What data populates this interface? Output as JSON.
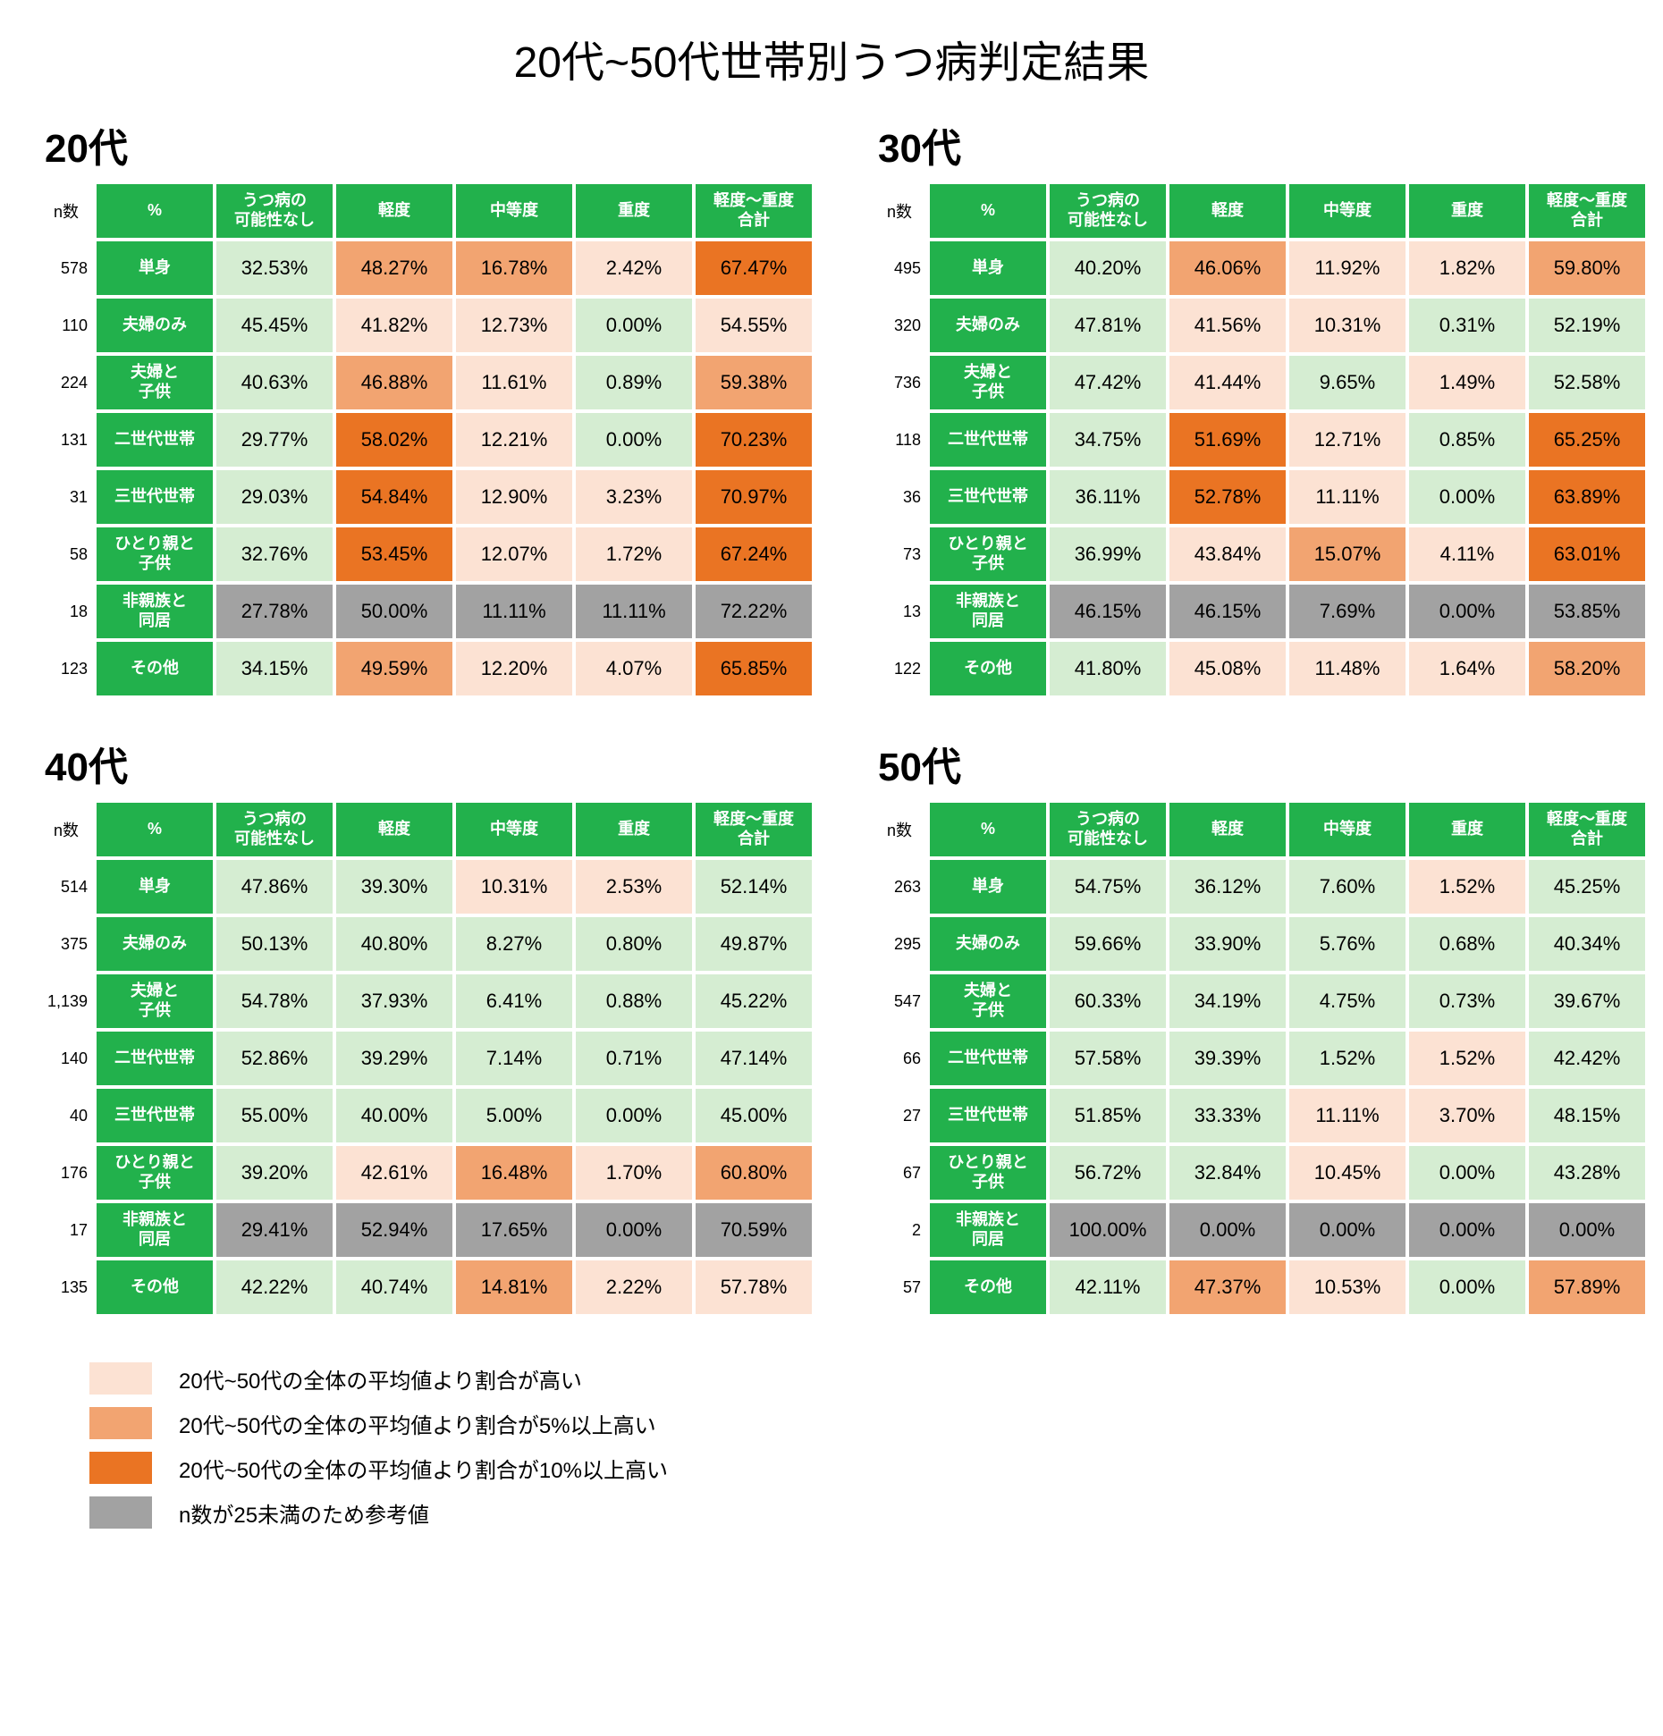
{
  "title": "20代~50代世帯別うつ病判定結果",
  "columns": {
    "n": "n数",
    "pct": "%",
    "none": "うつ病の\n可能性なし",
    "mild": "軽度",
    "moderate": "中等度",
    "severe": "重度",
    "total": "軽度～重度\n合計"
  },
  "row_labels": {
    "single": "単身",
    "couple": "夫婦のみ",
    "couple_child": "夫婦と\n子供",
    "two_gen": "二世代世帯",
    "three_gen": "三世代世帯",
    "single_parent": "ひとり親と\n子供",
    "nonrel": "非親族と\n同居",
    "other": "その他"
  },
  "colors": {
    "green_header": "#22b14c",
    "light_green": "#d5edd2",
    "high1": "#fce2d3",
    "high2": "#f2a471",
    "high3": "#ea7423",
    "ref_gray": "#a2a2a2",
    "text": "#000000",
    "header_text": "#ffffff"
  },
  "legend": [
    {
      "color": "high1",
      "text": "20代~50代の全体の平均値より割合が高い"
    },
    {
      "color": "high2",
      "text": "20代~50代の全体の平均値より割合が5%以上高い"
    },
    {
      "color": "high3",
      "text": "20代~50代の全体の平均値より割合が10%以上高い"
    },
    {
      "color": "ref_gray",
      "text": "n数が25未満のため参考値"
    }
  ],
  "tables": [
    {
      "heading": "20代",
      "rows": [
        {
          "n": "578",
          "key": "single",
          "v": [
            [
              "32.53%",
              "none"
            ],
            [
              "48.27%",
              "h2"
            ],
            [
              "16.78%",
              "h2"
            ],
            [
              "2.42%",
              "h1"
            ],
            [
              "67.47%",
              "h3"
            ]
          ]
        },
        {
          "n": "110",
          "key": "couple",
          "v": [
            [
              "45.45%",
              "none"
            ],
            [
              "41.82%",
              "h1"
            ],
            [
              "12.73%",
              "h1"
            ],
            [
              "0.00%",
              "none"
            ],
            [
              "54.55%",
              "h1"
            ]
          ]
        },
        {
          "n": "224",
          "key": "couple_child",
          "v": [
            [
              "40.63%",
              "none"
            ],
            [
              "46.88%",
              "h2"
            ],
            [
              "11.61%",
              "h1"
            ],
            [
              "0.89%",
              "none"
            ],
            [
              "59.38%",
              "h2"
            ]
          ]
        },
        {
          "n": "131",
          "key": "two_gen",
          "v": [
            [
              "29.77%",
              "none"
            ],
            [
              "58.02%",
              "h3"
            ],
            [
              "12.21%",
              "h1"
            ],
            [
              "0.00%",
              "none"
            ],
            [
              "70.23%",
              "h3"
            ]
          ]
        },
        {
          "n": "31",
          "key": "three_gen",
          "v": [
            [
              "29.03%",
              "none"
            ],
            [
              "54.84%",
              "h3"
            ],
            [
              "12.90%",
              "h1"
            ],
            [
              "3.23%",
              "h1"
            ],
            [
              "70.97%",
              "h3"
            ]
          ]
        },
        {
          "n": "58",
          "key": "single_parent",
          "v": [
            [
              "32.76%",
              "none"
            ],
            [
              "53.45%",
              "h3"
            ],
            [
              "12.07%",
              "h1"
            ],
            [
              "1.72%",
              "h1"
            ],
            [
              "67.24%",
              "h3"
            ]
          ]
        },
        {
          "n": "18",
          "key": "nonrel",
          "v": [
            [
              "27.78%",
              "ref"
            ],
            [
              "50.00%",
              "ref"
            ],
            [
              "11.11%",
              "ref"
            ],
            [
              "11.11%",
              "ref"
            ],
            [
              "72.22%",
              "ref"
            ]
          ]
        },
        {
          "n": "123",
          "key": "other",
          "v": [
            [
              "34.15%",
              "none"
            ],
            [
              "49.59%",
              "h2"
            ],
            [
              "12.20%",
              "h1"
            ],
            [
              "4.07%",
              "h1"
            ],
            [
              "65.85%",
              "h3"
            ]
          ]
        }
      ]
    },
    {
      "heading": "30代",
      "rows": [
        {
          "n": "495",
          "key": "single",
          "v": [
            [
              "40.20%",
              "none"
            ],
            [
              "46.06%",
              "h2"
            ],
            [
              "11.92%",
              "h1"
            ],
            [
              "1.82%",
              "h1"
            ],
            [
              "59.80%",
              "h2"
            ]
          ]
        },
        {
          "n": "320",
          "key": "couple",
          "v": [
            [
              "47.81%",
              "none"
            ],
            [
              "41.56%",
              "h1"
            ],
            [
              "10.31%",
              "h1"
            ],
            [
              "0.31%",
              "none"
            ],
            [
              "52.19%",
              "none"
            ]
          ]
        },
        {
          "n": "736",
          "key": "couple_child",
          "v": [
            [
              "47.42%",
              "none"
            ],
            [
              "41.44%",
              "h1"
            ],
            [
              "9.65%",
              "none"
            ],
            [
              "1.49%",
              "h1"
            ],
            [
              "52.58%",
              "none"
            ]
          ]
        },
        {
          "n": "118",
          "key": "two_gen",
          "v": [
            [
              "34.75%",
              "none"
            ],
            [
              "51.69%",
              "h3"
            ],
            [
              "12.71%",
              "h1"
            ],
            [
              "0.85%",
              "none"
            ],
            [
              "65.25%",
              "h3"
            ]
          ]
        },
        {
          "n": "36",
          "key": "three_gen",
          "v": [
            [
              "36.11%",
              "none"
            ],
            [
              "52.78%",
              "h3"
            ],
            [
              "11.11%",
              "h1"
            ],
            [
              "0.00%",
              "none"
            ],
            [
              "63.89%",
              "h3"
            ]
          ]
        },
        {
          "n": "73",
          "key": "single_parent",
          "v": [
            [
              "36.99%",
              "none"
            ],
            [
              "43.84%",
              "h1"
            ],
            [
              "15.07%",
              "h2"
            ],
            [
              "4.11%",
              "h1"
            ],
            [
              "63.01%",
              "h3"
            ]
          ]
        },
        {
          "n": "13",
          "key": "nonrel",
          "v": [
            [
              "46.15%",
              "ref"
            ],
            [
              "46.15%",
              "ref"
            ],
            [
              "7.69%",
              "ref"
            ],
            [
              "0.00%",
              "ref"
            ],
            [
              "53.85%",
              "ref"
            ]
          ]
        },
        {
          "n": "122",
          "key": "other",
          "v": [
            [
              "41.80%",
              "none"
            ],
            [
              "45.08%",
              "h1"
            ],
            [
              "11.48%",
              "h1"
            ],
            [
              "1.64%",
              "h1"
            ],
            [
              "58.20%",
              "h2"
            ]
          ]
        }
      ]
    },
    {
      "heading": "40代",
      "rows": [
        {
          "n": "514",
          "key": "single",
          "v": [
            [
              "47.86%",
              "none"
            ],
            [
              "39.30%",
              "none"
            ],
            [
              "10.31%",
              "h1"
            ],
            [
              "2.53%",
              "h1"
            ],
            [
              "52.14%",
              "none"
            ]
          ]
        },
        {
          "n": "375",
          "key": "couple",
          "v": [
            [
              "50.13%",
              "none"
            ],
            [
              "40.80%",
              "none"
            ],
            [
              "8.27%",
              "none"
            ],
            [
              "0.80%",
              "none"
            ],
            [
              "49.87%",
              "none"
            ]
          ]
        },
        {
          "n": "1,139",
          "key": "couple_child",
          "v": [
            [
              "54.78%",
              "none"
            ],
            [
              "37.93%",
              "none"
            ],
            [
              "6.41%",
              "none"
            ],
            [
              "0.88%",
              "none"
            ],
            [
              "45.22%",
              "none"
            ]
          ]
        },
        {
          "n": "140",
          "key": "two_gen",
          "v": [
            [
              "52.86%",
              "none"
            ],
            [
              "39.29%",
              "none"
            ],
            [
              "7.14%",
              "none"
            ],
            [
              "0.71%",
              "none"
            ],
            [
              "47.14%",
              "none"
            ]
          ]
        },
        {
          "n": "40",
          "key": "three_gen",
          "v": [
            [
              "55.00%",
              "none"
            ],
            [
              "40.00%",
              "none"
            ],
            [
              "5.00%",
              "none"
            ],
            [
              "0.00%",
              "none"
            ],
            [
              "45.00%",
              "none"
            ]
          ]
        },
        {
          "n": "176",
          "key": "single_parent",
          "v": [
            [
              "39.20%",
              "none"
            ],
            [
              "42.61%",
              "h1"
            ],
            [
              "16.48%",
              "h2"
            ],
            [
              "1.70%",
              "h1"
            ],
            [
              "60.80%",
              "h2"
            ]
          ]
        },
        {
          "n": "17",
          "key": "nonrel",
          "v": [
            [
              "29.41%",
              "ref"
            ],
            [
              "52.94%",
              "ref"
            ],
            [
              "17.65%",
              "ref"
            ],
            [
              "0.00%",
              "ref"
            ],
            [
              "70.59%",
              "ref"
            ]
          ]
        },
        {
          "n": "135",
          "key": "other",
          "v": [
            [
              "42.22%",
              "none"
            ],
            [
              "40.74%",
              "none"
            ],
            [
              "14.81%",
              "h2"
            ],
            [
              "2.22%",
              "h1"
            ],
            [
              "57.78%",
              "h1"
            ]
          ]
        }
      ]
    },
    {
      "heading": "50代",
      "rows": [
        {
          "n": "263",
          "key": "single",
          "v": [
            [
              "54.75%",
              "none"
            ],
            [
              "36.12%",
              "none"
            ],
            [
              "7.60%",
              "none"
            ],
            [
              "1.52%",
              "h1"
            ],
            [
              "45.25%",
              "none"
            ]
          ]
        },
        {
          "n": "295",
          "key": "couple",
          "v": [
            [
              "59.66%",
              "none"
            ],
            [
              "33.90%",
              "none"
            ],
            [
              "5.76%",
              "none"
            ],
            [
              "0.68%",
              "none"
            ],
            [
              "40.34%",
              "none"
            ]
          ]
        },
        {
          "n": "547",
          "key": "couple_child",
          "v": [
            [
              "60.33%",
              "none"
            ],
            [
              "34.19%",
              "none"
            ],
            [
              "4.75%",
              "none"
            ],
            [
              "0.73%",
              "none"
            ],
            [
              "39.67%",
              "none"
            ]
          ]
        },
        {
          "n": "66",
          "key": "two_gen",
          "v": [
            [
              "57.58%",
              "none"
            ],
            [
              "39.39%",
              "none"
            ],
            [
              "1.52%",
              "none"
            ],
            [
              "1.52%",
              "h1"
            ],
            [
              "42.42%",
              "none"
            ]
          ]
        },
        {
          "n": "27",
          "key": "three_gen",
          "v": [
            [
              "51.85%",
              "none"
            ],
            [
              "33.33%",
              "none"
            ],
            [
              "11.11%",
              "h1"
            ],
            [
              "3.70%",
              "h1"
            ],
            [
              "48.15%",
              "none"
            ]
          ]
        },
        {
          "n": "67",
          "key": "single_parent",
          "v": [
            [
              "56.72%",
              "none"
            ],
            [
              "32.84%",
              "none"
            ],
            [
              "10.45%",
              "h1"
            ],
            [
              "0.00%",
              "none"
            ],
            [
              "43.28%",
              "none"
            ]
          ]
        },
        {
          "n": "2",
          "key": "nonrel",
          "v": [
            [
              "100.00%",
              "ref"
            ],
            [
              "0.00%",
              "ref"
            ],
            [
              "0.00%",
              "ref"
            ],
            [
              "0.00%",
              "ref"
            ],
            [
              "0.00%",
              "ref"
            ]
          ]
        },
        {
          "n": "57",
          "key": "other",
          "v": [
            [
              "42.11%",
              "none"
            ],
            [
              "47.37%",
              "h2"
            ],
            [
              "10.53%",
              "h1"
            ],
            [
              "0.00%",
              "none"
            ],
            [
              "57.89%",
              "h2"
            ]
          ]
        }
      ]
    }
  ]
}
